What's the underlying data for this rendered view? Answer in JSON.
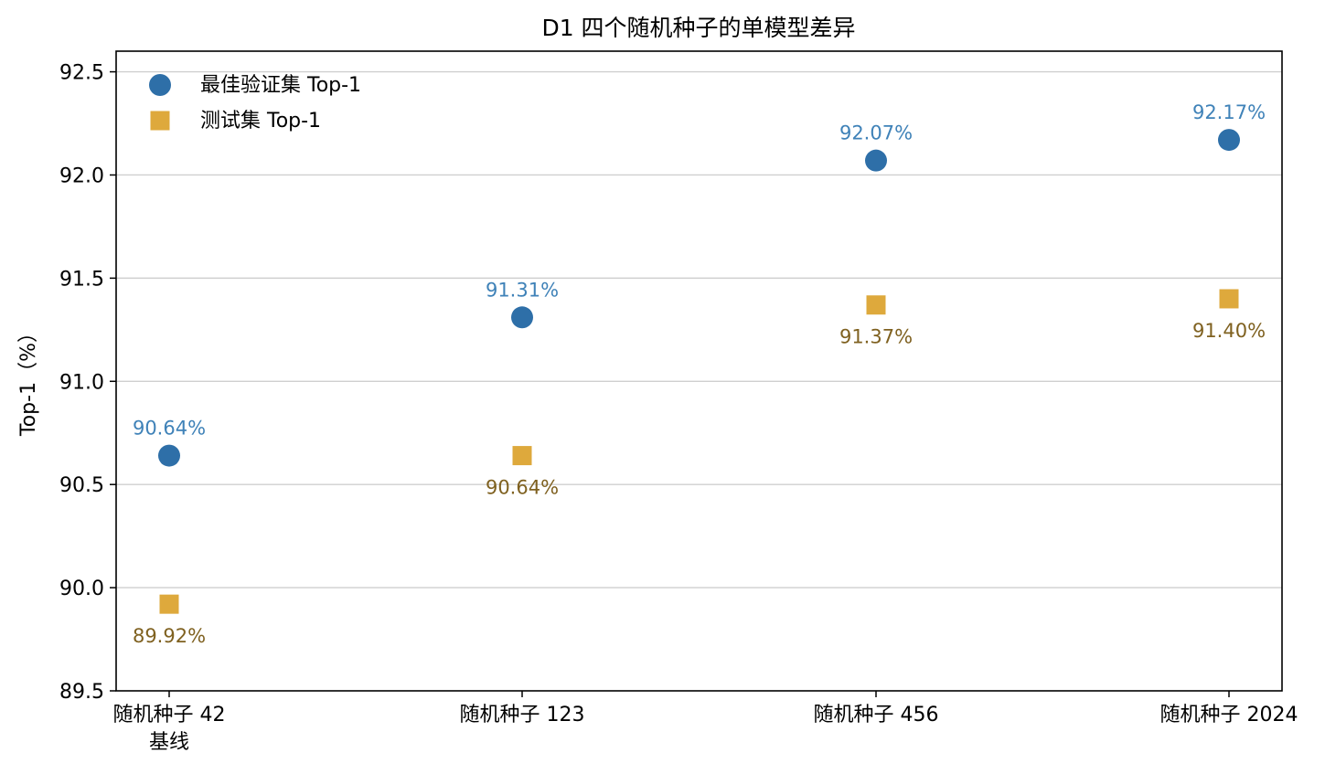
{
  "chart_data": {
    "type": "scatter",
    "title": "D1 四个随机种子的单模型差异",
    "ylabel": "Top-1（%）",
    "xlabel": "",
    "ylim": [
      89.5,
      92.6
    ],
    "yticks": [
      "89.5",
      "90.0",
      "90.5",
      "91.0",
      "91.5",
      "92.0",
      "92.5"
    ],
    "ytick_values": [
      89.5,
      90.0,
      90.5,
      91.0,
      91.5,
      92.0,
      92.5
    ],
    "grid": "horizontal",
    "legend_position": "top-left",
    "categories": [
      [
        "随机种子 42",
        "基线"
      ],
      [
        "随机种子 123"
      ],
      [
        "随机种子 456"
      ],
      [
        "随机种子 2024"
      ]
    ],
    "series": [
      {
        "name": "最佳验证集 Top-1",
        "marker": "circle",
        "color": "#2e6fa8",
        "label_color": "#3f82b8",
        "label_position": "above",
        "values": [
          90.64,
          91.31,
          92.07,
          92.17
        ],
        "labels": [
          "90.64%",
          "91.31%",
          "92.07%",
          "92.17%"
        ]
      },
      {
        "name": "测试集 Top-1",
        "marker": "square",
        "color": "#dea93c",
        "label_color": "#7f6120",
        "label_position": "below",
        "values": [
          89.92,
          90.64,
          91.37,
          91.4
        ],
        "labels": [
          "89.92%",
          "90.64%",
          "91.37%",
          "91.40%"
        ]
      }
    ]
  }
}
